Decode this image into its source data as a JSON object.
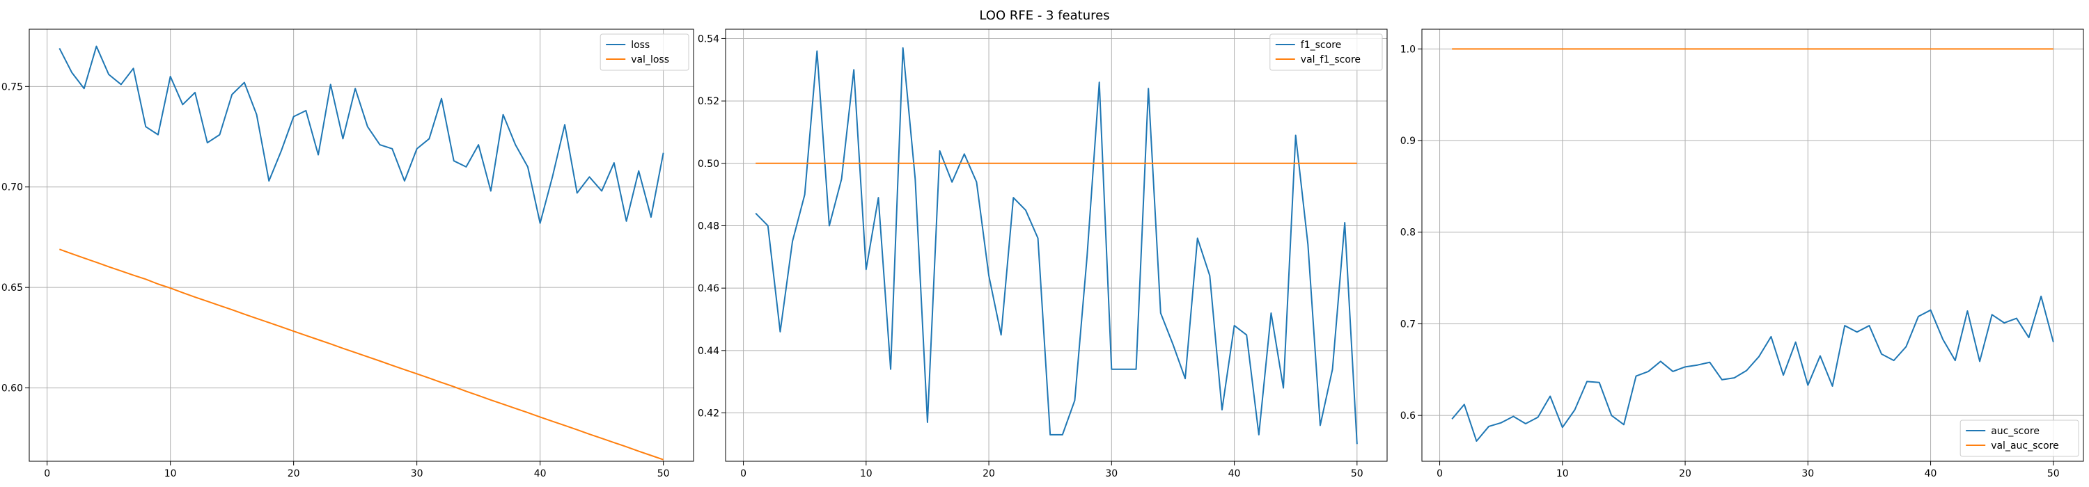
{
  "figure": {
    "suptitle": "LOO RFE - 3 features"
  },
  "colors": {
    "series_1": "#1f77b4",
    "series_2": "#ff7f0e"
  },
  "chart_data": [
    {
      "type": "line",
      "title": "",
      "xlabel": "",
      "ylabel": "",
      "xlim": [
        -1.45,
        52.45
      ],
      "ylim": [
        0.5635,
        0.7785
      ],
      "xticks": [
        0,
        10,
        20,
        30,
        40,
        50
      ],
      "yticks": [
        0.6,
        0.65,
        0.7,
        0.75
      ],
      "ytick_labels": [
        "0.60",
        "0.65",
        "0.70",
        "0.75"
      ],
      "grid": true,
      "legend": "upper right",
      "x": [
        1,
        2,
        3,
        4,
        5,
        6,
        7,
        8,
        9,
        10,
        11,
        12,
        13,
        14,
        15,
        16,
        17,
        18,
        19,
        20,
        21,
        22,
        23,
        24,
        25,
        26,
        27,
        28,
        29,
        30,
        31,
        32,
        33,
        34,
        35,
        36,
        37,
        38,
        39,
        40,
        41,
        42,
        43,
        44,
        45,
        46,
        47,
        48,
        49,
        50
      ],
      "series": [
        {
          "name": "loss",
          "values": [
            0.769,
            0.757,
            0.749,
            0.77,
            0.756,
            0.751,
            0.759,
            0.73,
            0.726,
            0.755,
            0.741,
            0.747,
            0.722,
            0.726,
            0.746,
            0.752,
            0.736,
            0.703,
            0.718,
            0.735,
            0.738,
            0.716,
            0.751,
            0.724,
            0.749,
            0.73,
            0.721,
            0.719,
            0.703,
            0.719,
            0.724,
            0.744,
            0.713,
            0.71,
            0.721,
            0.698,
            0.736,
            0.721,
            0.71,
            0.682,
            0.705,
            0.731,
            0.697,
            0.705,
            0.698,
            0.712,
            0.683,
            0.708,
            0.685,
            0.717
          ]
        },
        {
          "name": "val_loss",
          "values": [
            0.669,
            0.6668,
            0.6646,
            0.6625,
            0.6603,
            0.6582,
            0.6561,
            0.6541,
            0.6517,
            0.6497,
            0.6474,
            0.6452,
            0.6431,
            0.641,
            0.6389,
            0.6367,
            0.6346,
            0.6325,
            0.6304,
            0.6282,
            0.6261,
            0.624,
            0.6219,
            0.6197,
            0.6176,
            0.6155,
            0.6134,
            0.6112,
            0.6091,
            0.607,
            0.6049,
            0.6027,
            0.6006,
            0.5983,
            0.5962,
            0.594,
            0.5919,
            0.5898,
            0.5877,
            0.5855,
            0.5834,
            0.5813,
            0.5792,
            0.577,
            0.5749,
            0.5728,
            0.5707,
            0.5685,
            0.5664,
            0.5643
          ]
        }
      ]
    },
    {
      "type": "line",
      "title": "",
      "xlabel": "",
      "ylabel": "",
      "xlim": [
        -1.45,
        52.45
      ],
      "ylim": [
        0.4045,
        0.543
      ],
      "xticks": [
        0,
        10,
        20,
        30,
        40,
        50
      ],
      "yticks": [
        0.42,
        0.44,
        0.46,
        0.48,
        0.5,
        0.52,
        0.54
      ],
      "ytick_labels": [
        "0.42",
        "0.44",
        "0.46",
        "0.48",
        "0.50",
        "0.52",
        "0.54"
      ],
      "grid": true,
      "legend": "upper right",
      "x": [
        1,
        2,
        3,
        4,
        5,
        6,
        7,
        8,
        9,
        10,
        11,
        12,
        13,
        14,
        15,
        16,
        17,
        18,
        19,
        20,
        21,
        22,
        23,
        24,
        25,
        26,
        27,
        28,
        29,
        30,
        31,
        32,
        33,
        34,
        35,
        36,
        37,
        38,
        39,
        40,
        41,
        42,
        43,
        44,
        45,
        46,
        47,
        48,
        49,
        50
      ],
      "series": [
        {
          "name": "f1_score",
          "values": [
            0.484,
            0.48,
            0.446,
            0.475,
            0.49,
            0.536,
            0.48,
            0.495,
            0.53,
            0.466,
            0.489,
            0.434,
            0.537,
            0.495,
            0.417,
            0.504,
            0.494,
            0.503,
            0.494,
            0.464,
            0.445,
            0.489,
            0.485,
            0.476,
            0.413,
            0.413,
            0.424,
            0.47,
            0.526,
            0.434,
            0.434,
            0.434,
            0.524,
            0.452,
            0.442,
            0.431,
            0.476,
            0.464,
            0.421,
            0.448,
            0.445,
            0.413,
            0.452,
            0.428,
            0.509,
            0.474,
            0.416,
            0.434,
            0.481,
            0.41
          ]
        },
        {
          "name": "val_f1_score",
          "values": [
            0.5,
            0.5,
            0.5,
            0.5,
            0.5,
            0.5,
            0.5,
            0.5,
            0.5,
            0.5,
            0.5,
            0.5,
            0.5,
            0.5,
            0.5,
            0.5,
            0.5,
            0.5,
            0.5,
            0.5,
            0.5,
            0.5,
            0.5,
            0.5,
            0.5,
            0.5,
            0.5,
            0.5,
            0.5,
            0.5,
            0.5,
            0.5,
            0.5,
            0.5,
            0.5,
            0.5,
            0.5,
            0.5,
            0.5,
            0.5,
            0.5,
            0.5,
            0.5,
            0.5,
            0.5,
            0.5,
            0.5,
            0.5,
            0.5,
            0.5
          ]
        }
      ]
    },
    {
      "type": "line",
      "title": "",
      "xlabel": "",
      "ylabel": "",
      "xlim": [
        -1.45,
        52.45
      ],
      "ylim": [
        0.55,
        1.0215
      ],
      "xticks": [
        0,
        10,
        20,
        30,
        40,
        50
      ],
      "yticks": [
        0.6,
        0.7,
        0.8,
        0.9,
        1.0
      ],
      "ytick_labels": [
        "0.6",
        "0.7",
        "0.8",
        "0.9",
        "1.0"
      ],
      "grid": true,
      "legend": "lower right",
      "x": [
        1,
        2,
        3,
        4,
        5,
        6,
        7,
        8,
        9,
        10,
        11,
        12,
        13,
        14,
        15,
        16,
        17,
        18,
        19,
        20,
        21,
        22,
        23,
        24,
        25,
        26,
        27,
        28,
        29,
        30,
        31,
        32,
        33,
        34,
        35,
        36,
        37,
        38,
        39,
        40,
        41,
        42,
        43,
        44,
        45,
        46,
        47,
        48,
        49,
        50
      ],
      "series": [
        {
          "name": "auc_score",
          "values": [
            0.596,
            0.612,
            0.572,
            0.588,
            0.592,
            0.599,
            0.591,
            0.598,
            0.621,
            0.587,
            0.606,
            0.637,
            0.636,
            0.6,
            0.59,
            0.643,
            0.648,
            0.659,
            0.648,
            0.653,
            0.655,
            0.658,
            0.639,
            0.641,
            0.649,
            0.664,
            0.686,
            0.644,
            0.68,
            0.633,
            0.665,
            0.632,
            0.698,
            0.691,
            0.698,
            0.667,
            0.66,
            0.675,
            0.708,
            0.715,
            0.683,
            0.66,
            0.714,
            0.659,
            0.71,
            0.701,
            0.706,
            0.685,
            0.73,
            0.68
          ]
        },
        {
          "name": "val_auc_score",
          "values": [
            1.0,
            1.0,
            1.0,
            1.0,
            1.0,
            1.0,
            1.0,
            1.0,
            1.0,
            1.0,
            1.0,
            1.0,
            1.0,
            1.0,
            1.0,
            1.0,
            1.0,
            1.0,
            1.0,
            1.0,
            1.0,
            1.0,
            1.0,
            1.0,
            1.0,
            1.0,
            1.0,
            1.0,
            1.0,
            1.0,
            1.0,
            1.0,
            1.0,
            1.0,
            1.0,
            1.0,
            1.0,
            1.0,
            1.0,
            1.0,
            1.0,
            1.0,
            1.0,
            1.0,
            1.0,
            1.0,
            1.0,
            1.0,
            1.0,
            1.0
          ]
        }
      ]
    }
  ]
}
